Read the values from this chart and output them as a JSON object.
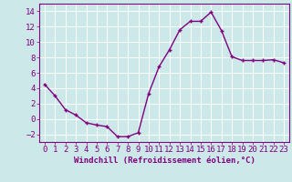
{
  "x": [
    0,
    1,
    2,
    3,
    4,
    5,
    6,
    7,
    8,
    9,
    10,
    11,
    12,
    13,
    14,
    15,
    16,
    17,
    18,
    19,
    20,
    21,
    22,
    23
  ],
  "y": [
    4.5,
    3.0,
    1.2,
    0.5,
    -0.5,
    -0.8,
    -1.0,
    -2.3,
    -2.3,
    -1.8,
    3.3,
    6.8,
    9.0,
    11.6,
    12.7,
    12.7,
    13.9,
    11.5,
    8.1,
    7.6,
    7.6,
    7.6,
    7.7,
    7.3
  ],
  "line_color": "#800080",
  "marker": "+",
  "xlabel": "Windchill (Refroidissement éolien,°C)",
  "xlim": [
    -0.5,
    23.5
  ],
  "ylim": [
    -3,
    15
  ],
  "yticks": [
    -2,
    0,
    2,
    4,
    6,
    8,
    10,
    12,
    14
  ],
  "xticks": [
    0,
    1,
    2,
    3,
    4,
    5,
    6,
    7,
    8,
    9,
    10,
    11,
    12,
    13,
    14,
    15,
    16,
    17,
    18,
    19,
    20,
    21,
    22,
    23
  ],
  "bg_color": "#cce8e8",
  "grid_color": "#ffffff",
  "tick_color": "#800080",
  "label_color": "#800080",
  "font_size_xlabel": 6.5,
  "font_size_ticks": 6.5,
  "line_width": 1.0,
  "marker_size": 3.5
}
